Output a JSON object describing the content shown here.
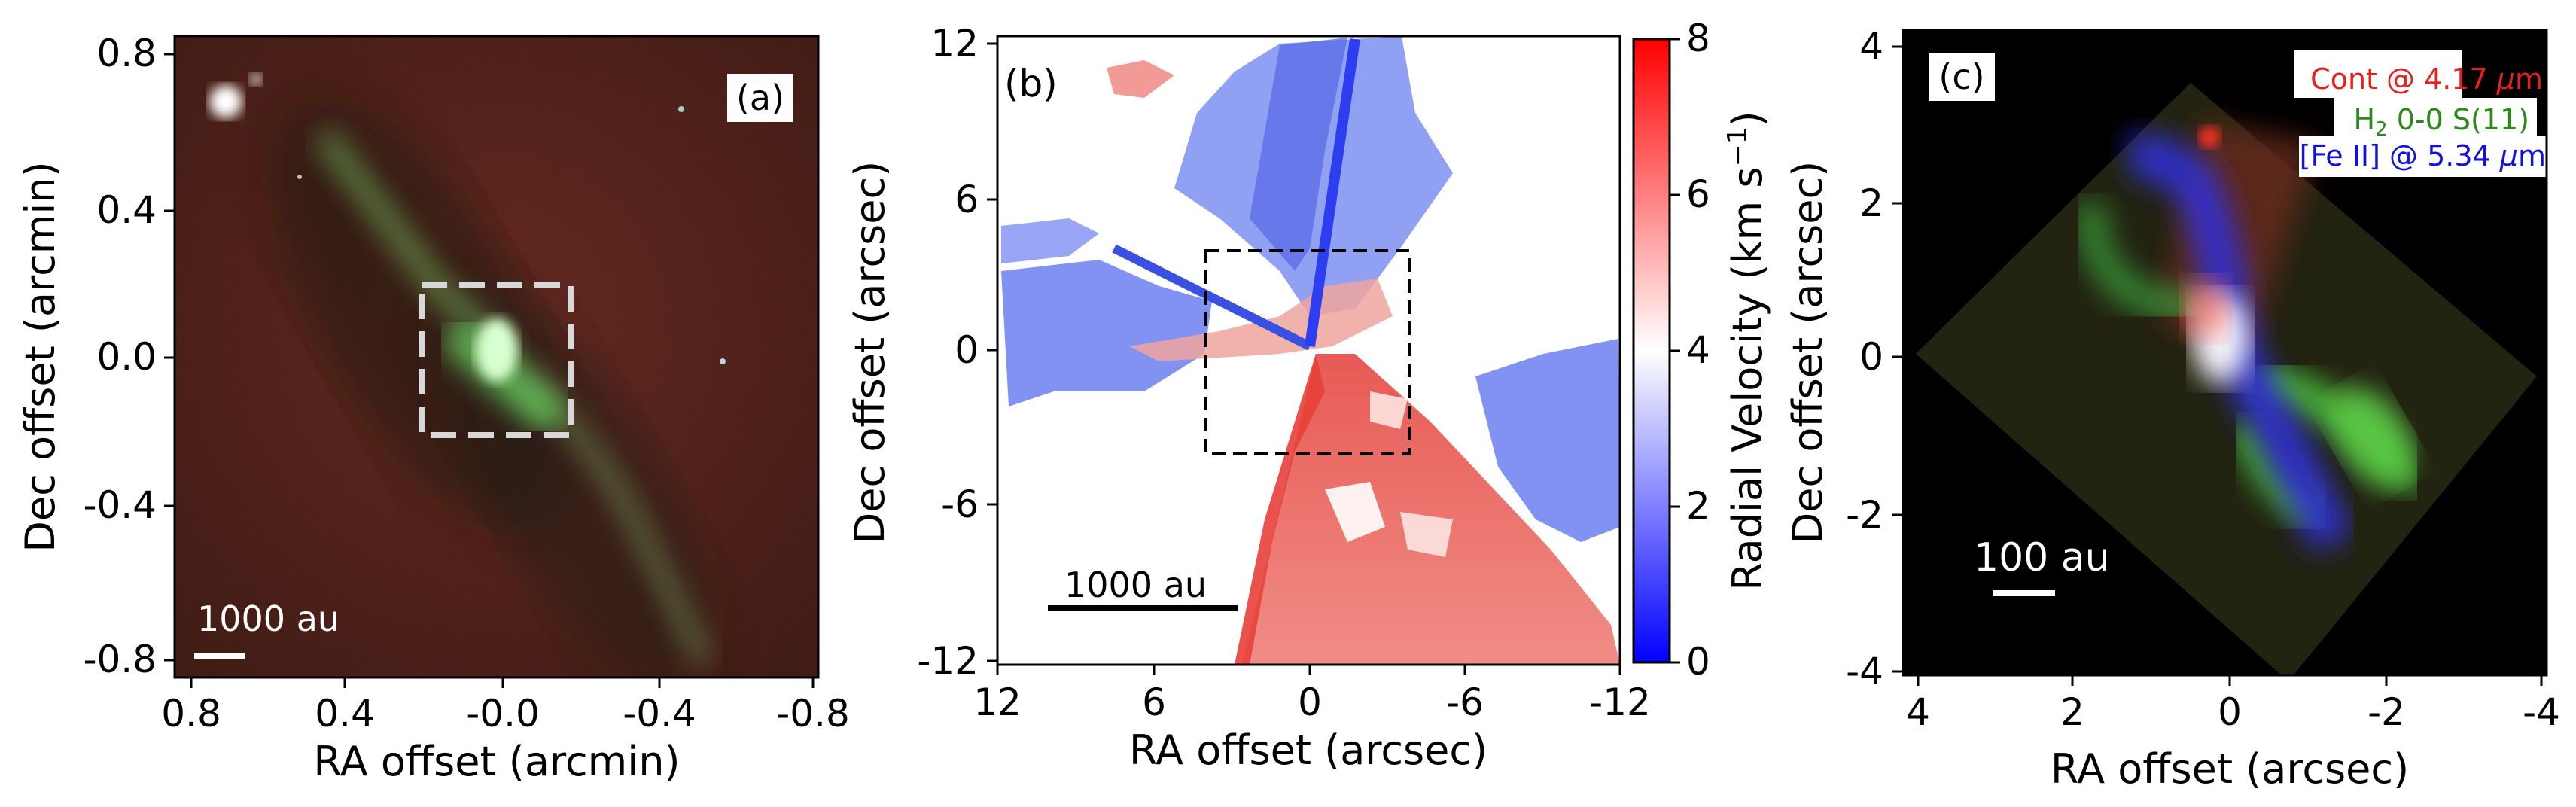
{
  "figure": {
    "panels": [
      {
        "id": "a",
        "label": "(a)",
        "xlabel": "RA offset (arcmin)",
        "ylabel": "Dec offset (arcmin)",
        "xticks": [
          "0.8",
          "0.4",
          "-0.0",
          "-0.4",
          "-0.8"
        ],
        "yticks": [
          "0.8",
          "0.4",
          "0.0",
          "-0.4",
          "-0.8"
        ],
        "scalebar": "1000 au",
        "image": "RGB composite: red background nebula with green outflow lobes and bright central source"
      },
      {
        "id": "b",
        "label": "(b)",
        "xlabel": "RA offset (arcsec)",
        "ylabel": "Dec offset (arcsec)",
        "xticks": [
          "12",
          "6",
          "0",
          "-6",
          "-12"
        ],
        "yticks": [
          "12",
          "6",
          "0",
          "-6",
          "-12"
        ],
        "scalebar": "1000 au",
        "colorbar": {
          "label": "Radial Velocity (km s",
          "label_sup": "−1",
          "label_end": ")",
          "ticks": [
            "8",
            "6",
            "4",
            "2",
            "0"
          ],
          "range": [
            0,
            8
          ],
          "colors": [
            "#0000ff",
            "#ffffff",
            "#ff0000"
          ]
        }
      },
      {
        "id": "c",
        "label": "(c)",
        "xlabel": "RA offset (arcsec)",
        "ylabel": "Dec offset (arcsec)",
        "xticks": [
          "4",
          "2",
          "0",
          "-2",
          "-4"
        ],
        "yticks": [
          "4",
          "2",
          "0",
          "-2",
          "-4"
        ],
        "scalebar": "100 au",
        "legend": [
          {
            "pre": "Cont @ 4.17 ",
            "mu": "μ",
            "post": "m",
            "color": "#e8201c"
          },
          {
            "pre": "H",
            "sub": "2",
            "post": " 0-0 S(11)",
            "color": "#2b8a1a"
          },
          {
            "pre": "[Fe II] @ 5.34 ",
            "mu": "μ",
            "post": "m",
            "color": "#1010e0"
          }
        ]
      }
    ]
  }
}
